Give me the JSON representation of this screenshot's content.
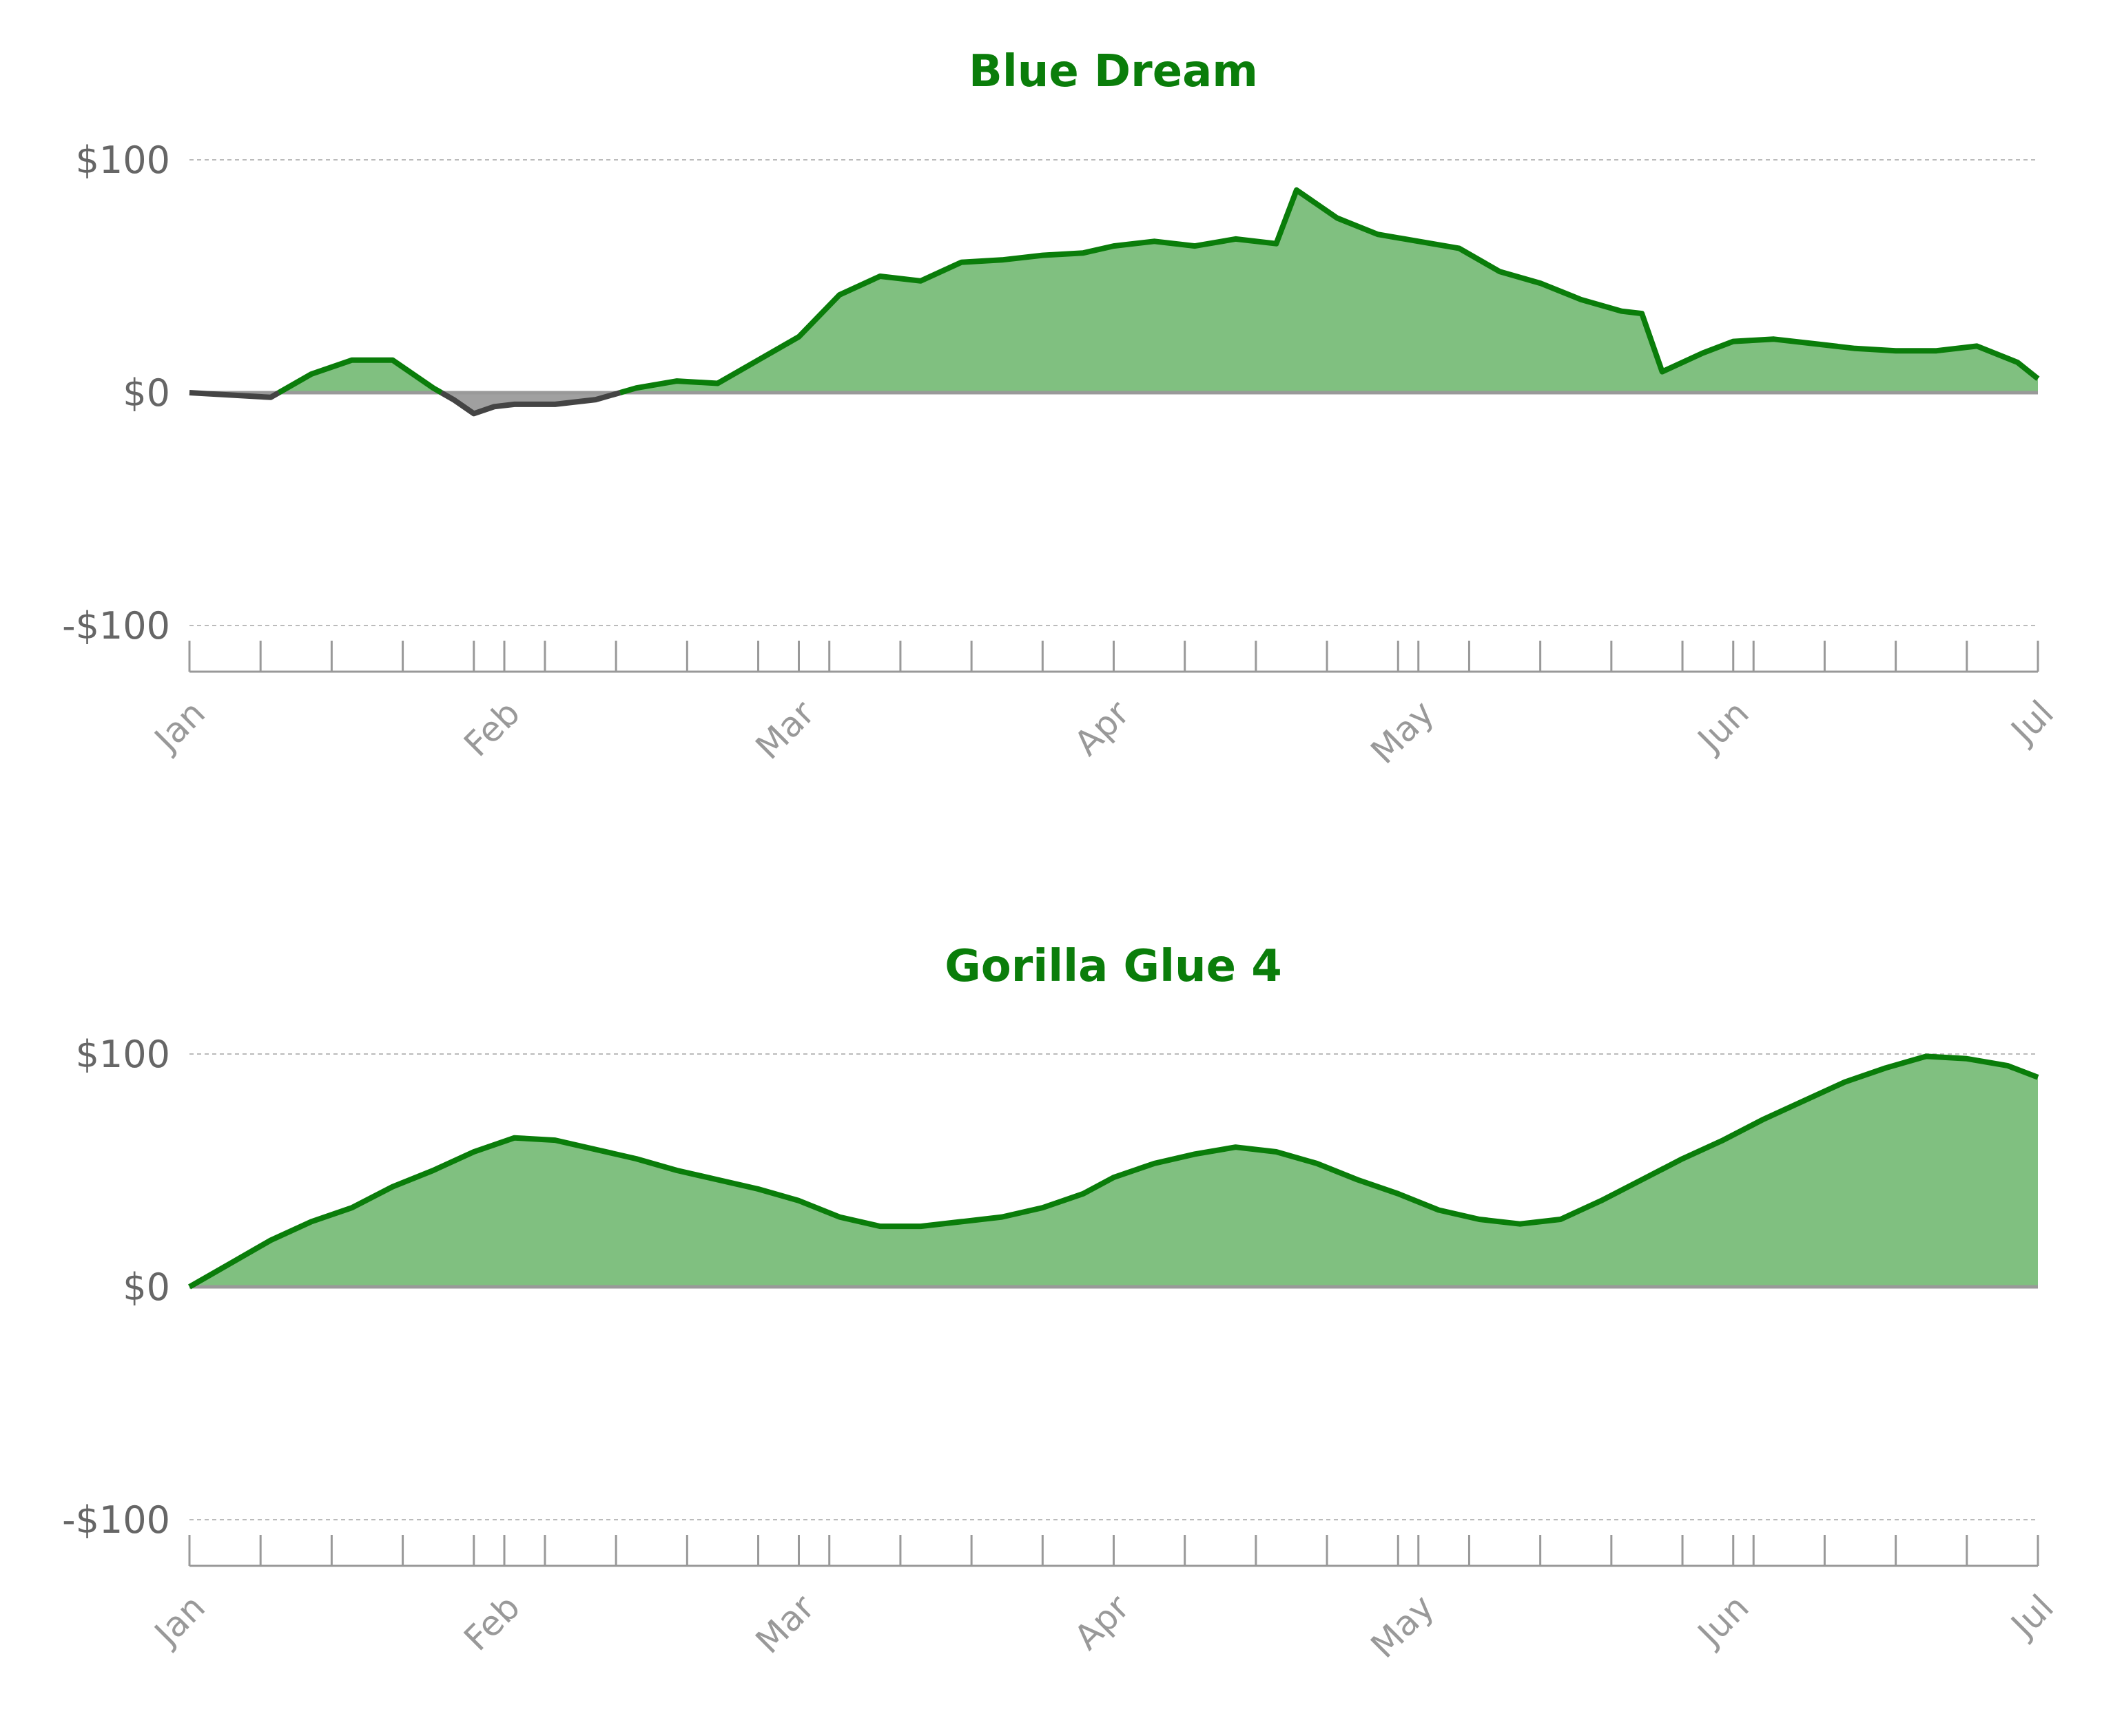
{
  "chart_data": [
    {
      "type": "area",
      "title": "Blue Dream",
      "xlabel": "",
      "ylabel": "",
      "ylim": [
        -100,
        100
      ],
      "yticks": [
        100,
        0,
        -100
      ],
      "ytick_labels": [
        "$100",
        "$0",
        "-$100"
      ],
      "x_range": [
        "2024-01-01",
        "2024-07-01"
      ],
      "x_ticks_month": [
        "Jan",
        "Feb",
        "Mar",
        "Apr",
        "May",
        "Jun",
        "Jul"
      ],
      "grid": "horizontal dashed",
      "legend": "none",
      "colors": {
        "positive_line": "#0a7d0a",
        "positive_fill": "#80c080",
        "negative_line": "#444444",
        "negative_fill": "#a0a0a0",
        "title": "#0a7d0a"
      },
      "series": [
        {
          "x": [
            "2024-01-01",
            "2024-01-05",
            "2024-01-09",
            "2024-01-13",
            "2024-01-17",
            "2024-01-21",
            "2024-01-25",
            "2024-01-27",
            "2024-01-29",
            "2024-01-31",
            "2024-02-02",
            "2024-02-06",
            "2024-02-10",
            "2024-02-14",
            "2024-02-18",
            "2024-02-22",
            "2024-02-26",
            "2024-03-01",
            "2024-03-05",
            "2024-03-09",
            "2024-03-13",
            "2024-03-17",
            "2024-03-21",
            "2024-03-25",
            "2024-03-29",
            "2024-04-01",
            "2024-04-05",
            "2024-04-09",
            "2024-04-13",
            "2024-04-17",
            "2024-04-19",
            "2024-04-23",
            "2024-04-27",
            "2024-05-01",
            "2024-05-05",
            "2024-05-09",
            "2024-05-13",
            "2024-05-17",
            "2024-05-21",
            "2024-05-23",
            "2024-05-25",
            "2024-05-29",
            "2024-06-01",
            "2024-06-05",
            "2024-06-09",
            "2024-06-13",
            "2024-06-17",
            "2024-06-21",
            "2024-06-25",
            "2024-06-29",
            "2024-07-01"
          ],
          "y": [
            0,
            -1,
            -2,
            8,
            14,
            14,
            2,
            -3,
            -9,
            -6,
            -5,
            -5,
            -3,
            2,
            5,
            4,
            14,
            24,
            42,
            50,
            48,
            56,
            57,
            59,
            60,
            63,
            65,
            63,
            66,
            64,
            87,
            75,
            68,
            65,
            62,
            52,
            47,
            40,
            35,
            34,
            9,
            17,
            22,
            23,
            21,
            19,
            18,
            18,
            20,
            13,
            6
          ]
        }
      ]
    },
    {
      "type": "area",
      "title": "Gorilla Glue 4",
      "xlabel": "",
      "ylabel": "",
      "ylim": [
        -100,
        100
      ],
      "yticks": [
        100,
        0,
        -100
      ],
      "ytick_labels": [
        "$100",
        "$0",
        "-$100"
      ],
      "x_range": [
        "2024-01-01",
        "2024-07-01"
      ],
      "x_ticks_month": [
        "Jan",
        "Feb",
        "Mar",
        "Apr",
        "May",
        "Jun",
        "Jul"
      ],
      "grid": "horizontal dashed",
      "legend": "none",
      "colors": {
        "positive_line": "#0a7d0a",
        "positive_fill": "#80c080",
        "negative_line": "#444444",
        "negative_fill": "#a0a0a0",
        "title": "#0a7d0a"
      },
      "series": [
        {
          "x": [
            "2024-01-01",
            "2024-01-05",
            "2024-01-09",
            "2024-01-13",
            "2024-01-17",
            "2024-01-21",
            "2024-01-25",
            "2024-01-29",
            "2024-02-02",
            "2024-02-06",
            "2024-02-10",
            "2024-02-14",
            "2024-02-18",
            "2024-02-22",
            "2024-02-26",
            "2024-03-01",
            "2024-03-05",
            "2024-03-09",
            "2024-03-13",
            "2024-03-17",
            "2024-03-21",
            "2024-03-25",
            "2024-03-29",
            "2024-04-01",
            "2024-04-05",
            "2024-04-09",
            "2024-04-13",
            "2024-04-17",
            "2024-04-21",
            "2024-04-25",
            "2024-04-29",
            "2024-05-03",
            "2024-05-07",
            "2024-05-11",
            "2024-05-15",
            "2024-05-19",
            "2024-05-23",
            "2024-05-27",
            "2024-05-31",
            "2024-06-04",
            "2024-06-08",
            "2024-06-12",
            "2024-06-16",
            "2024-06-20",
            "2024-06-24",
            "2024-06-28",
            "2024-07-01"
          ],
          "y": [
            0,
            10,
            20,
            28,
            34,
            43,
            50,
            58,
            64,
            63,
            59,
            55,
            50,
            46,
            42,
            37,
            30,
            26,
            26,
            28,
            30,
            34,
            40,
            47,
            53,
            57,
            60,
            58,
            53,
            46,
            40,
            33,
            29,
            27,
            29,
            37,
            46,
            55,
            63,
            72,
            80,
            88,
            94,
            99,
            98,
            95,
            90
          ]
        }
      ]
    }
  ]
}
